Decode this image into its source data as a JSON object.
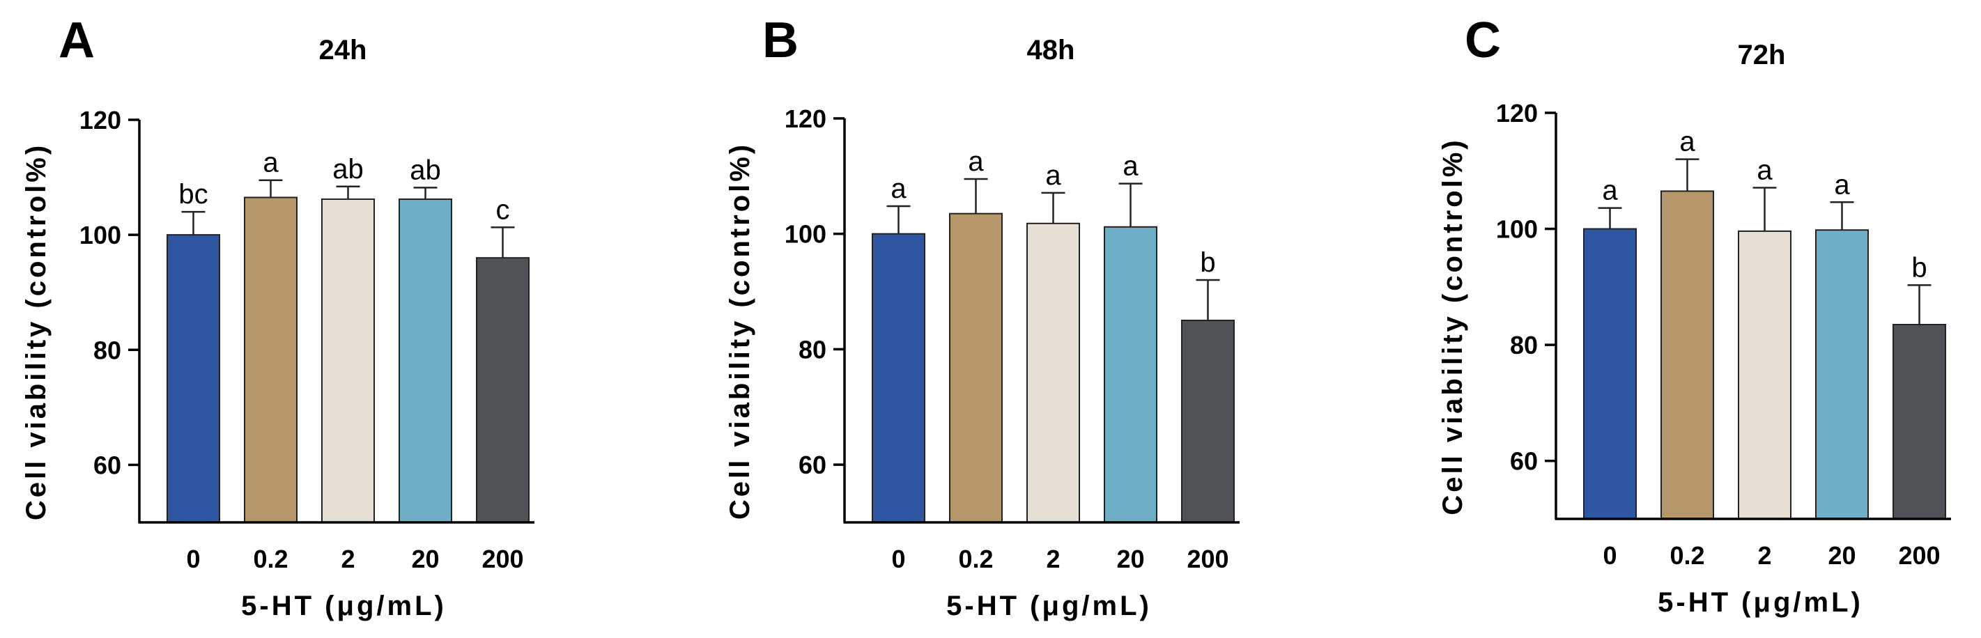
{
  "colors": {
    "0": "#2f56a3",
    "0.2": "#b5976b",
    "2": "#e5e0d3",
    "20": "#6eaec6",
    "200": "#4f5257"
  },
  "chart_data": [
    {
      "type": "bar",
      "panel": "A",
      "title": "24h",
      "xlabel": "5-HT (μg/mL)",
      "ylabel": "Cell viability (control%)",
      "categories": [
        "0",
        "0.2",
        "2",
        "20",
        "200"
      ],
      "values": [
        100,
        106.5,
        106.2,
        106.2,
        96
      ],
      "errors": [
        4,
        3,
        2.2,
        2,
        5.3
      ],
      "significance": [
        "bc",
        "a",
        "ab",
        "ab",
        "c"
      ],
      "ylim": [
        50,
        120
      ],
      "yticks": [
        60,
        80,
        100,
        120
      ]
    },
    {
      "type": "bar",
      "panel": "B",
      "title": "48h",
      "xlabel": "5-HT (μg/mL)",
      "ylabel": "Cell viability (control%)",
      "categories": [
        "0",
        "0.2",
        "2",
        "20",
        "200"
      ],
      "values": [
        100,
        103.5,
        101.8,
        101.2,
        85
      ],
      "errors": [
        4.8,
        6,
        5.3,
        7.5,
        7
      ],
      "significance": [
        "a",
        "a",
        "a",
        "a",
        "b"
      ],
      "ylim": [
        50,
        120
      ],
      "yticks": [
        60,
        80,
        100,
        120
      ]
    },
    {
      "type": "bar",
      "panel": "C",
      "title": "72h",
      "xlabel": "5-HT (μg/mL)",
      "ylabel": "Cell viability (control%)",
      "categories": [
        "0",
        "0.2",
        "2",
        "20",
        "200"
      ],
      "values": [
        100,
        106.5,
        99.6,
        99.8,
        83.5
      ],
      "errors": [
        3.6,
        5.5,
        7.5,
        4.8,
        6.8
      ],
      "significance": [
        "a",
        "a",
        "a",
        "a",
        "b"
      ],
      "ylim": [
        50,
        120
      ],
      "yticks": [
        60,
        80,
        100,
        120
      ]
    }
  ]
}
